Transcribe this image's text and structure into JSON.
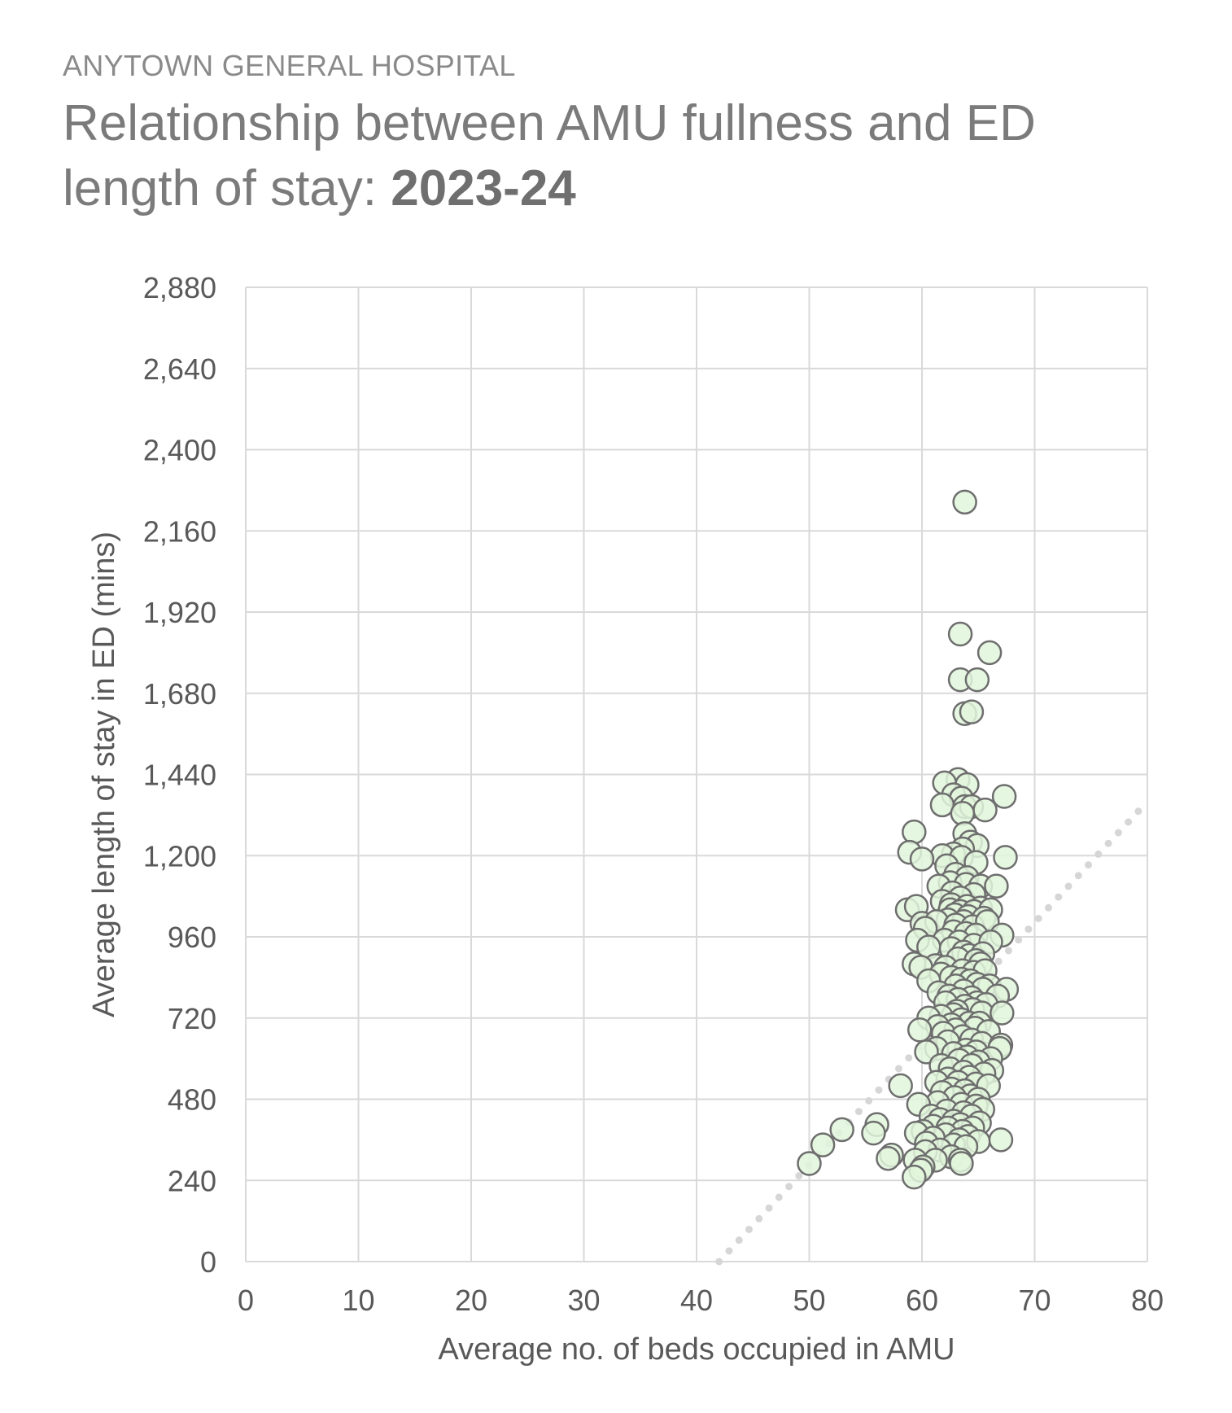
{
  "header": {
    "kicker": "ANYTOWN GENERAL HOSPITAL",
    "title_main": "Relationship between AMU fullness and ED length of stay: ",
    "title_period": "2023-24"
  },
  "colors": {
    "marker_fill": "#e2f6dc",
    "marker_stroke": "#6e6e6e",
    "grid": "#d9d9d9",
    "trend": "#d6d6d6",
    "text": "#595959"
  },
  "chart_data": {
    "type": "scatter",
    "xlabel": "Average no. of beds occupied in AMU",
    "ylabel": "Average length of stay in ED (mins)",
    "xlim": [
      0,
      80
    ],
    "ylim": [
      0,
      2880
    ],
    "x_ticks": [
      "0",
      "10",
      "20",
      "30",
      "40",
      "50",
      "60",
      "70",
      "80"
    ],
    "y_ticks": [
      "0",
      "240",
      "480",
      "720",
      "960",
      "1,200",
      "1,440",
      "1,680",
      "1,920",
      "2,160",
      "2,400",
      "2,640",
      "2,880"
    ],
    "grid": true,
    "trendline": {
      "style": "dotted",
      "from": [
        42,
        0
      ],
      "to": [
        80,
        1360
      ]
    },
    "series": [
      {
        "points": [
          [
            63.8,
            2245
          ],
          [
            63.4,
            1855
          ],
          [
            66.0,
            1800
          ],
          [
            63.4,
            1720
          ],
          [
            64.9,
            1720
          ],
          [
            63.8,
            1620
          ],
          [
            64.4,
            1625
          ],
          [
            63.2,
            1425
          ],
          [
            62.0,
            1415
          ],
          [
            64.0,
            1410
          ],
          [
            62.8,
            1380
          ],
          [
            63.5,
            1370
          ],
          [
            67.3,
            1375
          ],
          [
            61.8,
            1350
          ],
          [
            63.8,
            1345
          ],
          [
            64.4,
            1345
          ],
          [
            65.6,
            1335
          ],
          [
            63.6,
            1325
          ],
          [
            59.3,
            1270
          ],
          [
            63.8,
            1265
          ],
          [
            64.3,
            1240
          ],
          [
            64.9,
            1230
          ],
          [
            63.6,
            1220
          ],
          [
            58.9,
            1210
          ],
          [
            62.8,
            1205
          ],
          [
            61.8,
            1200
          ],
          [
            63.5,
            1195
          ],
          [
            67.4,
            1195
          ],
          [
            60.0,
            1190
          ],
          [
            64.8,
            1180
          ],
          [
            62.2,
            1170
          ],
          [
            63.0,
            1145
          ],
          [
            64.0,
            1135
          ],
          [
            62.5,
            1120
          ],
          [
            61.5,
            1110
          ],
          [
            63.9,
            1115
          ],
          [
            65.2,
            1110
          ],
          [
            66.6,
            1110
          ],
          [
            62.7,
            1090
          ],
          [
            64.6,
            1085
          ],
          [
            63.4,
            1075
          ],
          [
            61.8,
            1065
          ],
          [
            62.6,
            1055
          ],
          [
            64.0,
            1050
          ],
          [
            65.2,
            1045
          ],
          [
            58.7,
            1040
          ],
          [
            59.5,
            1050
          ],
          [
            62.5,
            1040
          ],
          [
            63.4,
            1035
          ],
          [
            64.6,
            1035
          ],
          [
            66.1,
            1040
          ],
          [
            62.9,
            1025
          ],
          [
            64.1,
            1020
          ],
          [
            62.3,
            1010
          ],
          [
            63.7,
            1005
          ],
          [
            65.5,
            1015
          ],
          [
            60.0,
            1000
          ],
          [
            61.3,
            1005
          ],
          [
            63.0,
            995
          ],
          [
            64.5,
            990
          ],
          [
            65.8,
            1005
          ],
          [
            60.3,
            985
          ],
          [
            62.8,
            975
          ],
          [
            63.9,
            970
          ],
          [
            64.8,
            965
          ],
          [
            67.1,
            965
          ],
          [
            59.6,
            950
          ],
          [
            62.0,
            950
          ],
          [
            63.3,
            945
          ],
          [
            64.6,
            935
          ],
          [
            66.1,
            945
          ],
          [
            60.6,
            930
          ],
          [
            62.6,
            925
          ],
          [
            63.7,
            915
          ],
          [
            64.2,
            905
          ],
          [
            65.4,
            910
          ],
          [
            63.2,
            895
          ],
          [
            64.8,
            890
          ],
          [
            65.2,
            880
          ],
          [
            61.2,
            875
          ],
          [
            59.3,
            880
          ],
          [
            59.9,
            870
          ],
          [
            62.1,
            870
          ],
          [
            63.6,
            860
          ],
          [
            64.6,
            855
          ],
          [
            65.6,
            860
          ],
          [
            61.7,
            850
          ],
          [
            62.6,
            840
          ],
          [
            63.5,
            835
          ],
          [
            64.3,
            830
          ],
          [
            60.6,
            830
          ],
          [
            64.9,
            820
          ],
          [
            66.0,
            815
          ],
          [
            63.0,
            815
          ],
          [
            65.4,
            805
          ],
          [
            67.5,
            805
          ],
          [
            63.7,
            800
          ],
          [
            61.5,
            795
          ],
          [
            62.4,
            785
          ],
          [
            64.4,
            780
          ],
          [
            66.7,
            785
          ],
          [
            63.2,
            775
          ],
          [
            64.9,
            765
          ],
          [
            62.1,
            765
          ],
          [
            65.7,
            760
          ],
          [
            63.8,
            755
          ],
          [
            64.5,
            745
          ],
          [
            63.1,
            740
          ],
          [
            65.3,
            735
          ],
          [
            67.1,
            735
          ],
          [
            62.8,
            730
          ],
          [
            61.7,
            725
          ],
          [
            60.6,
            720
          ],
          [
            63.5,
            715
          ],
          [
            64.2,
            705
          ],
          [
            65.1,
            705
          ],
          [
            62.6,
            700
          ],
          [
            61.4,
            695
          ],
          [
            64.7,
            690
          ],
          [
            63.0,
            685
          ],
          [
            59.8,
            685
          ],
          [
            65.9,
            680
          ],
          [
            61.9,
            675
          ],
          [
            63.6,
            665
          ],
          [
            64.4,
            655
          ],
          [
            62.3,
            650
          ],
          [
            65.3,
            645
          ],
          [
            67.0,
            640
          ],
          [
            66.9,
            630
          ],
          [
            61.3,
            630
          ],
          [
            63.9,
            625
          ],
          [
            64.8,
            620
          ],
          [
            62.8,
            615
          ],
          [
            60.4,
            620
          ],
          [
            64.0,
            605
          ],
          [
            66.1,
            600
          ],
          [
            63.3,
            595
          ],
          [
            65.0,
            590
          ],
          [
            64.4,
            580
          ],
          [
            61.7,
            580
          ],
          [
            62.5,
            570
          ],
          [
            66.2,
            565
          ],
          [
            63.7,
            560
          ],
          [
            65.5,
            555
          ],
          [
            64.2,
            545
          ],
          [
            62.3,
            540
          ],
          [
            63.2,
            530
          ],
          [
            61.3,
            530
          ],
          [
            64.8,
            525
          ],
          [
            65.9,
            520
          ],
          [
            58.1,
            520
          ],
          [
            62.6,
            510
          ],
          [
            63.8,
            505
          ],
          [
            61.8,
            500
          ],
          [
            64.3,
            490
          ],
          [
            65.0,
            480
          ],
          [
            62.9,
            485
          ],
          [
            61.4,
            470
          ],
          [
            63.5,
            465
          ],
          [
            64.8,
            460
          ],
          [
            59.7,
            465
          ],
          [
            65.4,
            450
          ],
          [
            62.2,
            445
          ],
          [
            63.7,
            440
          ],
          [
            60.8,
            430
          ],
          [
            64.4,
            430
          ],
          [
            61.6,
            420
          ],
          [
            62.8,
            415
          ],
          [
            63.4,
            405
          ],
          [
            65.1,
            410
          ],
          [
            61.0,
            400
          ],
          [
            64.5,
            395
          ],
          [
            62.3,
            395
          ],
          [
            63.6,
            385
          ],
          [
            60.1,
            385
          ],
          [
            59.5,
            380
          ],
          [
            56.0,
            405
          ],
          [
            52.9,
            390
          ],
          [
            55.7,
            380
          ],
          [
            62.1,
            375
          ],
          [
            64.1,
            370
          ],
          [
            61.0,
            365
          ],
          [
            63.3,
            360
          ],
          [
            65.0,
            355
          ],
          [
            60.4,
            350
          ],
          [
            67.0,
            360
          ],
          [
            51.2,
            345
          ],
          [
            62.8,
            345
          ],
          [
            63.9,
            340
          ],
          [
            61.6,
            330
          ],
          [
            60.3,
            325
          ],
          [
            57.3,
            315
          ],
          [
            57.0,
            305
          ],
          [
            62.6,
            310
          ],
          [
            63.4,
            300
          ],
          [
            61.2,
            300
          ],
          [
            50.0,
            290
          ],
          [
            63.5,
            290
          ],
          [
            59.4,
            300
          ],
          [
            60.1,
            280
          ],
          [
            59.9,
            270
          ],
          [
            59.3,
            250
          ]
        ]
      }
    ]
  }
}
